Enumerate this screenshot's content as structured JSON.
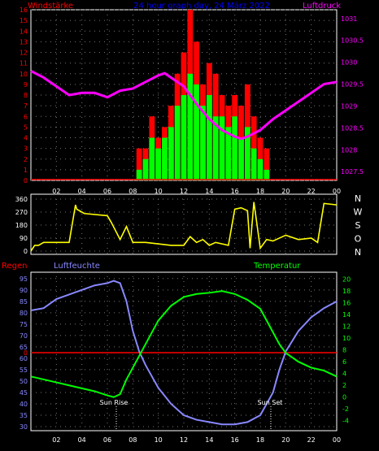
{
  "panel1": {
    "title_left": "Windstärke",
    "title_center": "24 hour graph day, 24 März 2022",
    "title_right": "Luftdruck",
    "left_ticks": [
      "0",
      "1",
      "2",
      "3",
      "4",
      "5",
      "6",
      "7",
      "8",
      "9",
      "10",
      "11",
      "12",
      "13",
      "14",
      "15",
      "16"
    ],
    "right_ticks": [
      "1027.5",
      "1028",
      "1028.5",
      "1029",
      "1029.5",
      "1030",
      "1030.5",
      "1031"
    ],
    "colors": {
      "wind": "#ff0000",
      "gust": "#00ff00",
      "pressure": "#ff00ff",
      "left_axis": "#ff0000",
      "right_axis": "#ff00ff"
    }
  },
  "panel2": {
    "left_ticks": [
      "0",
      "90",
      "180",
      "270",
      "360"
    ],
    "right_labels": [
      "N",
      "W",
      "S",
      "O",
      "N"
    ],
    "colors": {
      "direction": "#ffff00"
    }
  },
  "panel3": {
    "label_rain": "Regen",
    "label_humidity": "Luftfeuchte",
    "label_temperature": "Temperatur",
    "left_ticks": [
      "30",
      "35",
      "40",
      "45",
      "50",
      "55",
      "60",
      "65",
      "70",
      "75",
      "80",
      "85",
      "90",
      "95"
    ],
    "right_ticks": [
      "-4",
      "-2",
      "0",
      "2",
      "4",
      "6",
      "8",
      "10",
      "12",
      "14",
      "16",
      "18",
      "20"
    ],
    "rain_tick": "0",
    "sunrise_label": "Sun Rise",
    "sunset_label": "Sun Set",
    "colors": {
      "humidity": "#8888ff",
      "temperature": "#00ff00",
      "rain": "#ff0000"
    }
  },
  "x_ticks": [
    "02",
    "04",
    "06",
    "08",
    "10",
    "12",
    "14",
    "16",
    "18",
    "20",
    "22",
    "00"
  ],
  "chart_data": [
    {
      "type": "line",
      "title": "24 hour graph day, 24 März 2022",
      "x_unit": "hour",
      "xlim": [
        0,
        24
      ],
      "series": [
        {
          "name": "Luftdruck",
          "axis": "right",
          "ylim": [
            1027.3,
            1031.2
          ],
          "x": [
            0,
            1,
            2,
            3,
            4,
            5,
            6,
            7,
            8,
            9,
            10,
            10.5,
            11,
            12,
            13,
            14,
            15,
            16,
            16.5,
            17,
            18,
            19,
            20,
            21,
            22,
            23,
            24
          ],
          "values": [
            1029.8,
            1029.65,
            1029.45,
            1029.25,
            1029.3,
            1029.3,
            1029.2,
            1029.35,
            1029.4,
            1029.55,
            1029.7,
            1029.75,
            1029.65,
            1029.45,
            1029.05,
            1028.7,
            1028.45,
            1028.3,
            1028.25,
            1028.3,
            1028.45,
            1028.7,
            1028.9,
            1029.1,
            1029.3,
            1029.5,
            1029.55
          ]
        },
        {
          "name": "Windstärke",
          "axis": "left",
          "ylim": [
            0,
            16
          ],
          "x": [
            8.5,
            9,
            9.5,
            10,
            10.5,
            11,
            11.5,
            12,
            12.5,
            13,
            13.5,
            14,
            14.5,
            15,
            15.5,
            16,
            16.5,
            17,
            17.5,
            18,
            18.5
          ],
          "values": [
            3,
            3,
            6,
            4,
            5,
            7,
            10,
            12,
            16,
            13,
            9,
            11,
            10,
            8,
            7,
            8,
            7,
            9,
            6,
            4,
            3
          ]
        },
        {
          "name": "Böen",
          "axis": "left",
          "ylim": [
            0,
            16
          ],
          "x": [
            8.5,
            9,
            9.5,
            10,
            10.5,
            11,
            11.5,
            12,
            12.5,
            13,
            13.5,
            14,
            14.5,
            15,
            15.5,
            16,
            16.5,
            17,
            17.5,
            18,
            18.5
          ],
          "values": [
            1,
            2,
            4,
            3,
            4,
            5,
            7,
            8,
            10,
            9,
            7,
            8,
            6,
            6,
            5,
            6,
            4,
            5,
            3,
            2,
            1
          ]
        }
      ]
    },
    {
      "type": "line",
      "ylim": [
        0,
        360
      ],
      "x_unit": "hour",
      "xlim": [
        0,
        24
      ],
      "series": [
        {
          "name": "Windrichtung",
          "x": [
            0,
            0.3,
            0.6,
            1,
            2,
            3,
            3.5,
            3.6,
            4,
            4.2,
            6,
            6.3,
            7,
            7.5,
            8,
            8.5,
            9,
            11,
            12,
            12.5,
            13,
            13.5,
            14,
            14.5,
            15,
            15.5,
            16,
            16.5,
            17,
            17.2,
            17.5,
            18,
            18.5,
            19,
            20,
            21,
            22,
            22.5,
            23,
            24
          ],
          "values": [
            0,
            40,
            40,
            60,
            60,
            60,
            320,
            290,
            270,
            260,
            245,
            200,
            80,
            170,
            60,
            60,
            60,
            40,
            40,
            100,
            60,
            80,
            40,
            60,
            50,
            40,
            290,
            300,
            280,
            20,
            340,
            20,
            80,
            70,
            110,
            80,
            90,
            60,
            330,
            320
          ]
        }
      ]
    },
    {
      "type": "line",
      "x_unit": "hour",
      "xlim": [
        0,
        24
      ],
      "series": [
        {
          "name": "Luftfeuchte",
          "axis": "left",
          "ylim": [
            30,
            96
          ],
          "x": [
            0,
            1,
            2,
            3,
            4,
            5,
            6,
            6.5,
            7,
            7.5,
            8,
            8.5,
            9,
            10,
            11,
            12,
            13,
            14,
            15,
            16,
            17,
            18,
            18.5,
            19,
            19.5,
            20,
            21,
            22,
            23,
            24
          ],
          "values": [
            81,
            82,
            86,
            88,
            90,
            92,
            93,
            94,
            93,
            85,
            72,
            63,
            57,
            47,
            40,
            35,
            33,
            32,
            31,
            31,
            32,
            35,
            40,
            45,
            55,
            63,
            72,
            78,
            82,
            85
          ]
        },
        {
          "name": "Temperatur",
          "axis": "right",
          "ylim": [
            -5,
            20.5
          ],
          "x": [
            0,
            1,
            2,
            3,
            4,
            5,
            6,
            6.5,
            7,
            7.5,
            8,
            8.5,
            9,
            10,
            11,
            12,
            13,
            14,
            15,
            16,
            17,
            18,
            18.5,
            19,
            19.5,
            20,
            21,
            22,
            23,
            24
          ],
          "values": [
            3.5,
            3,
            2.5,
            2,
            1.5,
            1,
            0.3,
            0,
            0.5,
            3,
            5,
            7,
            9,
            13,
            15.5,
            17,
            17.5,
            17.7,
            18,
            17.5,
            16.5,
            15,
            13,
            11,
            9,
            7.5,
            6,
            5,
            4.5,
            3.5
          ]
        },
        {
          "name": "Regen",
          "axis": "left",
          "y": 0,
          "x": [
            0,
            24
          ],
          "values": [
            0,
            0
          ]
        }
      ]
    }
  ]
}
